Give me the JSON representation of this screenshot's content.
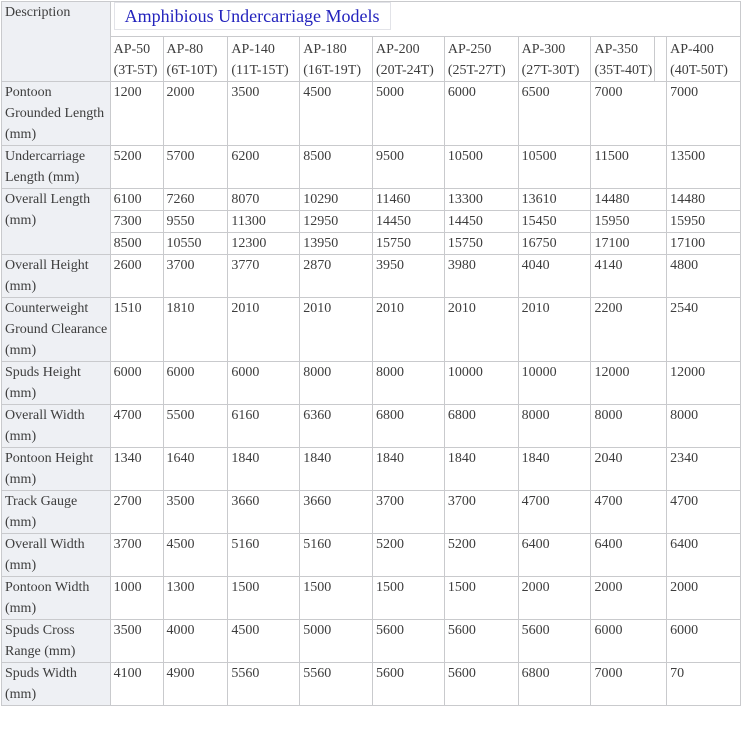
{
  "table": {
    "description_header": "Description",
    "title": "Amphibious Undercarriage Models",
    "models": [
      {
        "name": "AP-50",
        "range": "(3T-5T)"
      },
      {
        "name": "AP-80",
        "range": "(6T-10T)"
      },
      {
        "name": "AP-140",
        "range": "(11T-15T)"
      },
      {
        "name": "AP-180",
        "range": "(16T-19T)"
      },
      {
        "name": "AP-200",
        "range": "(20T-24T)"
      },
      {
        "name": "AP-250",
        "range": "(25T-27T)"
      },
      {
        "name": "AP-300",
        "range": "(27T-30T)"
      },
      {
        "name": "AP-350",
        "range": "(35T-40T)"
      },
      {
        "name": "AP-400",
        "range": "(40T-50T)"
      }
    ],
    "rows": [
      {
        "label": "Pontoon Grounded Length (mm)",
        "values": [
          "1200",
          "2000",
          "3500",
          "4500",
          "5000",
          "6000",
          "6500",
          "7000",
          "7000"
        ]
      },
      {
        "label": "Undercarriage Length (mm)",
        "values": [
          "5200",
          "5700",
          "6200",
          "8500",
          "9500",
          "10500",
          "10500",
          "11500",
          "13500"
        ]
      },
      {
        "label": "Overall Length (mm)",
        "subrows": [
          [
            "6100",
            "7260",
            "8070",
            "10290",
            "11460",
            "13300",
            "13610",
            "14480",
            "14480"
          ],
          [
            "7300",
            "9550",
            "11300",
            "12950",
            "14450",
            "14450",
            "15450",
            "15950",
            "15950"
          ],
          [
            "8500",
            "10550",
            "12300",
            "13950",
            "15750",
            "15750",
            "16750",
            "17100",
            "17100"
          ]
        ]
      },
      {
        "label": "Overall Height (mm)",
        "values": [
          "2600",
          "3700",
          "3770",
          "2870",
          "3950",
          "3980",
          "4040",
          "4140",
          "4800"
        ]
      },
      {
        "label": "Counterweight Ground Clearance (mm)",
        "values": [
          "1510",
          "1810",
          "2010",
          "2010",
          "2010",
          "2010",
          "2010",
          "2200",
          "2540"
        ]
      },
      {
        "label": "Spuds Height (mm)",
        "values": [
          "6000",
          "6000",
          "6000",
          "8000",
          "8000",
          "10000",
          "10000",
          "12000",
          "12000"
        ]
      },
      {
        "label": "Overall Width (mm)",
        "values": [
          "4700",
          "5500",
          "6160",
          "6360",
          "6800",
          "6800",
          "8000",
          "8000",
          "8000"
        ]
      },
      {
        "label": "Pontoon Height (mm)",
        "values": [
          "1340",
          "1640",
          "1840",
          "1840",
          "1840",
          "1840",
          "1840",
          "2040",
          "2340"
        ]
      },
      {
        "label": "Track Gauge (mm)",
        "values": [
          "2700",
          "3500",
          "3660",
          "3660",
          "3700",
          "3700",
          "4700",
          "4700",
          "4700"
        ]
      },
      {
        "label": "Overall Width (mm)",
        "values": [
          "3700",
          "4500",
          "5160",
          "5160",
          "5200",
          "5200",
          "6400",
          "6400",
          "6400"
        ]
      },
      {
        "label": "Pontoon Width (mm)",
        "values": [
          "1000",
          "1300",
          "1500",
          "1500",
          "1500",
          "1500",
          "2000",
          "2000",
          "2000"
        ]
      },
      {
        "label": "Spuds Cross Range (mm)",
        "values": [
          "3500",
          "4000",
          "4500",
          "5000",
          "5600",
          "5600",
          "5600",
          "6000",
          "6000"
        ]
      },
      {
        "label": "Spuds Width (mm)",
        "values": [
          "4100",
          "4900",
          "5560",
          "5560",
          "5600",
          "5600",
          "6800",
          "7000",
          "70"
        ]
      }
    ],
    "colors": {
      "title_color": "#2323bd",
      "label_background": "#eef0f4",
      "border": "#c9cacd",
      "text": "#3d3d3d"
    }
  }
}
